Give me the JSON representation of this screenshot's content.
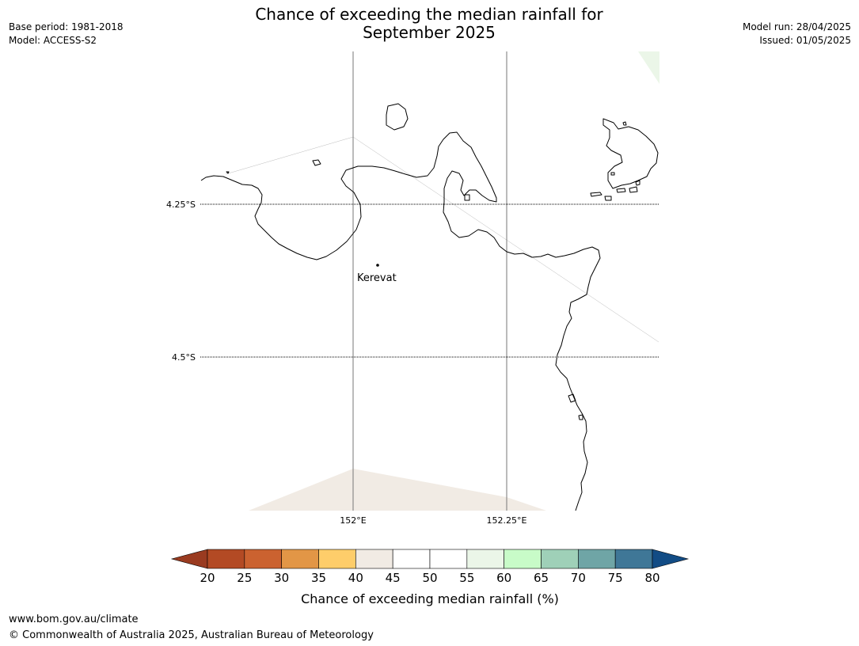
{
  "header": {
    "title_line1": "Chance of exceeding the median rainfall for",
    "title_line2": "September 2025",
    "base_period": "Base period: 1981-2018",
    "model": "Model: ACCESS-S2",
    "model_run": "Model run: 28/04/2025",
    "issued": "Issued: 01/05/2025"
  },
  "map": {
    "latitude_labels": [
      "4.25°S",
      "4.5°S"
    ],
    "longitude_labels": [
      "152°E",
      "152.25°E"
    ],
    "place": {
      "name": "Kerevat"
    },
    "coastline_color": "#000000"
  },
  "colorbar": {
    "label": "Chance of exceeding median rainfall (%)",
    "ticks": [
      "20",
      "25",
      "30",
      "35",
      "40",
      "45",
      "50",
      "55",
      "60",
      "65",
      "70",
      "75",
      "80"
    ],
    "under_color": "#9a3b20",
    "over_color": "#124c85",
    "bin_colors": [
      "#b34a24",
      "#cb6230",
      "#e29646",
      "#fecd6a",
      "#f1ebe4",
      "#ffffff",
      "#ffffff",
      "#ebf6e8",
      "#c8fbc8",
      "#9fd0b8",
      "#6fa5a6",
      "#3f7797"
    ]
  },
  "footer": {
    "url": "www.bom.gov.au/climate",
    "copyright": "© Commonwealth of Australia 2025, Australian Bureau of Meteorology"
  }
}
